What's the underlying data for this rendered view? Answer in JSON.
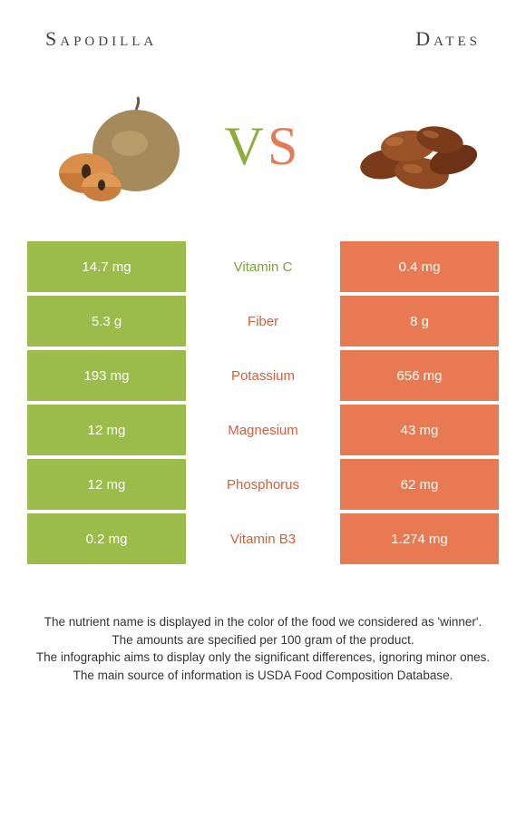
{
  "colors": {
    "left": "#9bbb4b",
    "right": "#e77a52",
    "left_winner_text": "#7da037",
    "right_winner_text": "#d2613b",
    "white": "#ffffff"
  },
  "header": {
    "left_title": "Sapodilla",
    "right_title": "Dates"
  },
  "vs": {
    "v": "V",
    "s": "S"
  },
  "rows": [
    {
      "left": "14.7 mg",
      "label": "Vitamin C",
      "right": "0.4 mg",
      "winner": "left"
    },
    {
      "left": "5.3 g",
      "label": "Fiber",
      "right": "8 g",
      "winner": "right"
    },
    {
      "left": "193 mg",
      "label": "Potassium",
      "right": "656 mg",
      "winner": "right"
    },
    {
      "left": "12 mg",
      "label": "Magnesium",
      "right": "43 mg",
      "winner": "right"
    },
    {
      "left": "12 mg",
      "label": "Phosphorus",
      "right": "62 mg",
      "winner": "right"
    },
    {
      "left": "0.2 mg",
      "label": "Vitamin B3",
      "right": "1.274 mg",
      "winner": "right"
    }
  ],
  "footer": {
    "line1": "The nutrient name is displayed in the color of the food we considered as 'winner'.",
    "line2": "The amounts are specified per 100 gram of the product.",
    "line3": "The infographic aims to display only the significant differences, ignoring minor ones.",
    "line4": "The main source of information is USDA Food Composition Database."
  }
}
